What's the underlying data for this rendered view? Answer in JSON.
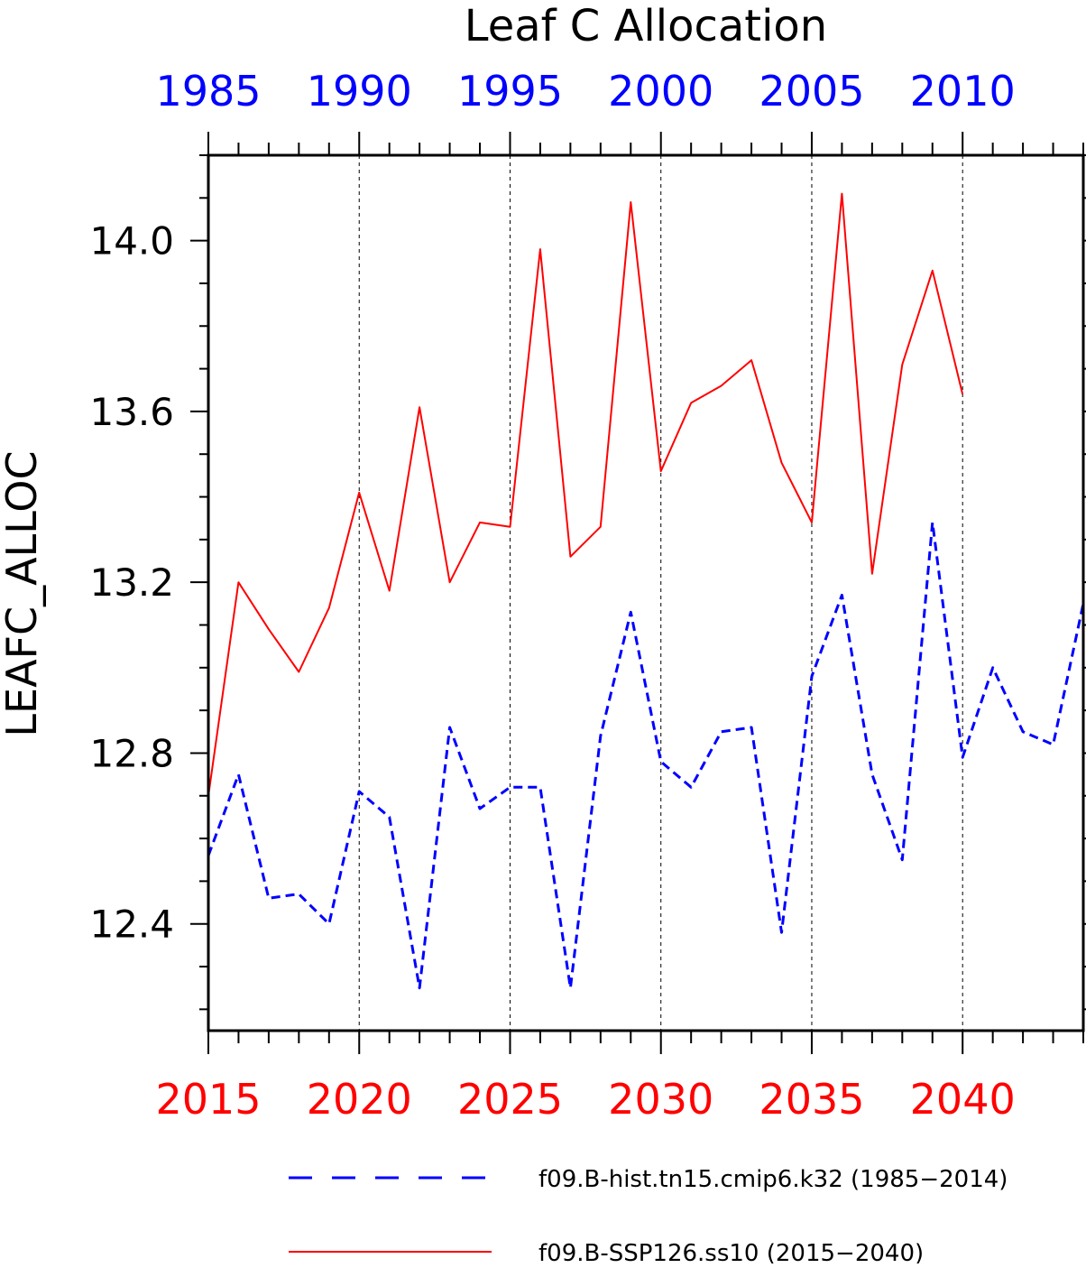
{
  "chart_data": {
    "type": "line",
    "title": "Leaf C Allocation",
    "ylabel": "LEAFC_ALLOC",
    "xlim": [
      2015,
      2044
    ],
    "ylim": [
      12.15,
      14.2
    ],
    "y_ticks": [
      "12.4",
      "12.8",
      "13.2",
      "13.6",
      "14.0"
    ],
    "bottom_axis": {
      "color": "#ff0000",
      "ticks": [
        "2015",
        "2020",
        "2025",
        "2030",
        "2035",
        "2040"
      ]
    },
    "top_axis": {
      "color": "#0000ff",
      "ticks": [
        "1985",
        "1990",
        "1995",
        "2000",
        "2005",
        "2010"
      ]
    },
    "grid": "vertical dashed at major ticks",
    "legend_placement": "bottom",
    "series": [
      {
        "name": "f09.B-hist.tn15.cmip6.k32 (1985−2014)",
        "color": "#0000ff",
        "style": "dashed",
        "axis": "top",
        "x": [
          1985,
          1986,
          1987,
          1988,
          1989,
          1990,
          1991,
          1992,
          1993,
          1994,
          1995,
          1996,
          1997,
          1998,
          1999,
          2000,
          2001,
          2002,
          2003,
          2004,
          2005,
          2006,
          2007,
          2008,
          2009,
          2010,
          2011,
          2012,
          2013,
          2014
        ],
        "values": [
          12.56,
          12.75,
          12.46,
          12.47,
          12.4,
          12.71,
          12.65,
          12.25,
          12.86,
          12.67,
          12.72,
          12.72,
          12.25,
          12.84,
          13.13,
          12.78,
          12.72,
          12.85,
          12.86,
          12.38,
          12.98,
          13.17,
          12.75,
          12.55,
          13.34,
          12.79,
          13.0,
          12.85,
          12.82,
          13.15
        ]
      },
      {
        "name": "f09.B-SSP126.ss10 (2015−2040)",
        "color": "#ff0000",
        "style": "solid",
        "axis": "bottom",
        "x": [
          2015,
          2016,
          2017,
          2018,
          2019,
          2020,
          2021,
          2022,
          2023,
          2024,
          2025,
          2026,
          2027,
          2028,
          2029,
          2030,
          2031,
          2032,
          2033,
          2034,
          2035,
          2036,
          2037,
          2038,
          2039,
          2040
        ],
        "values": [
          12.7,
          13.2,
          13.09,
          12.99,
          13.14,
          13.41,
          13.18,
          13.61,
          13.2,
          13.34,
          13.33,
          13.98,
          13.26,
          13.33,
          14.09,
          13.46,
          13.62,
          13.66,
          13.72,
          13.48,
          13.34,
          14.11,
          13.22,
          13.71,
          13.93,
          13.64
        ]
      }
    ]
  }
}
